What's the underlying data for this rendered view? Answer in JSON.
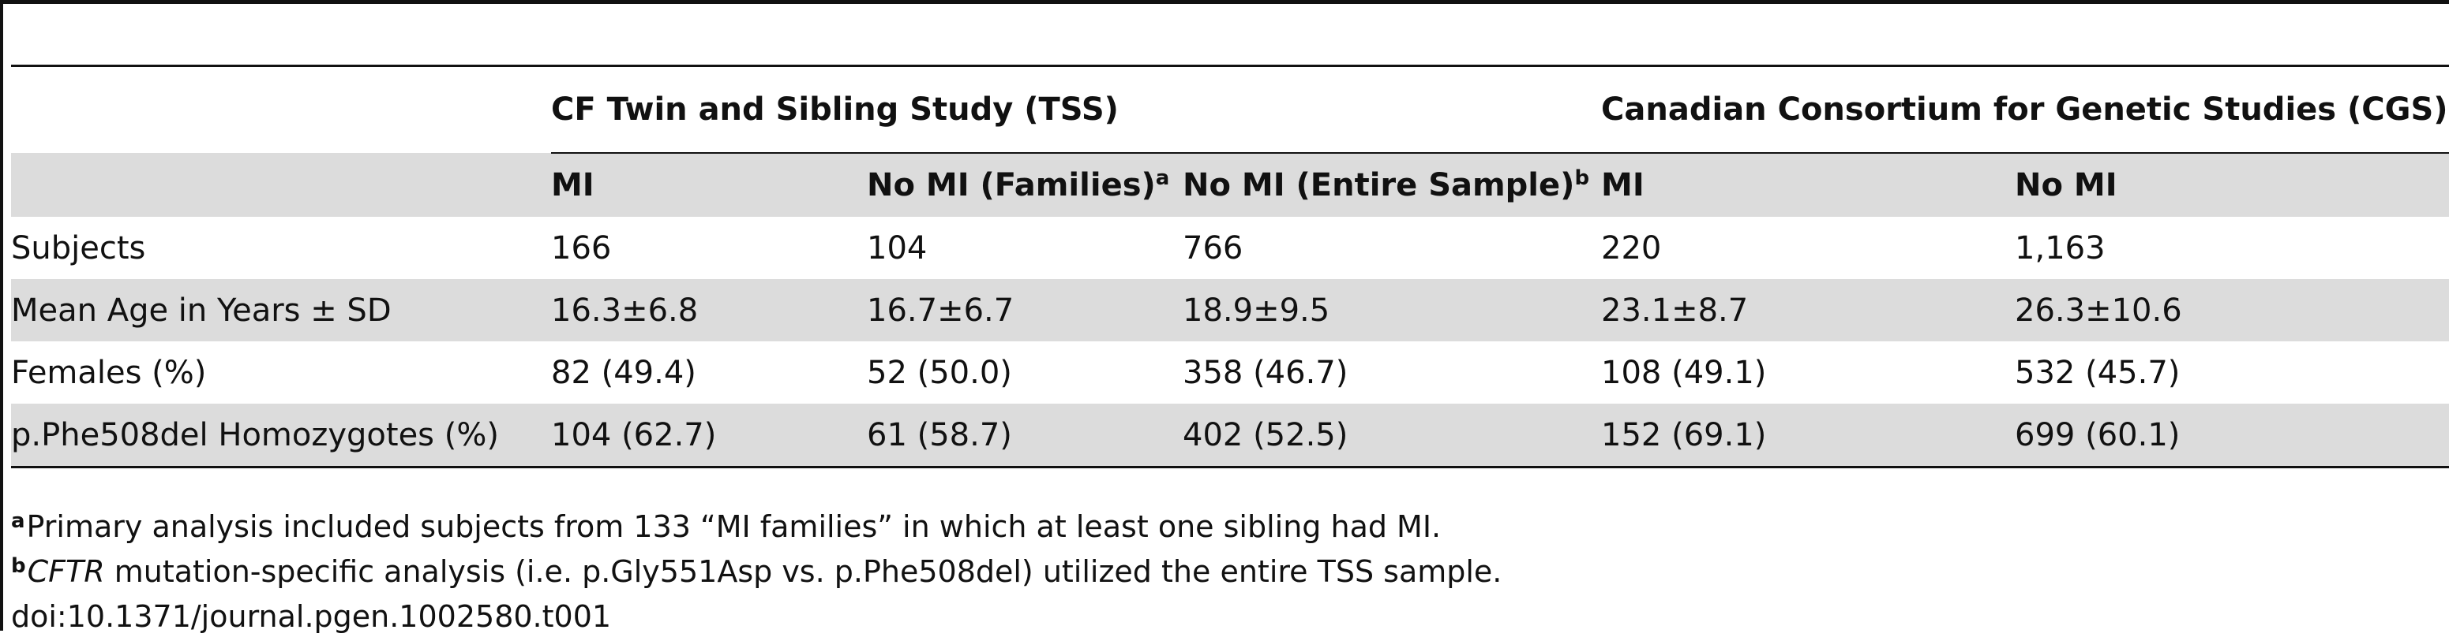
{
  "table": {
    "groups": [
      {
        "label": "",
        "span": 1
      },
      {
        "label": "CF Twin and Sibling Study (TSS)",
        "span": 3
      },
      {
        "label": "Canadian Consortium for Genetic Studies (CGS)",
        "span": 2
      }
    ],
    "columns": [
      {
        "label": "",
        "sup": ""
      },
      {
        "label": "MI",
        "sup": ""
      },
      {
        "label": "No MI (Families)",
        "sup": "a"
      },
      {
        "label": "No MI (Entire Sample)",
        "sup": "b"
      },
      {
        "label": "MI",
        "sup": ""
      },
      {
        "label": "No MI",
        "sup": ""
      }
    ],
    "rows": [
      {
        "label": "Subjects",
        "values": [
          "166",
          "104",
          "766",
          "220",
          "1,163"
        ]
      },
      {
        "label": "Mean Age in Years ± SD",
        "values": [
          "16.3±6.8",
          "16.7±6.7",
          "18.9±9.5",
          "23.1±8.7",
          "26.3±10.6"
        ]
      },
      {
        "label": "Females (%)",
        "values": [
          "82 (49.4)",
          "52 (50.0)",
          "358 (46.7)",
          "108 (49.1)",
          "532 (45.7)"
        ]
      },
      {
        "label": "p.Phe508del Homozygotes (%)",
        "values": [
          "104 (62.7)",
          "61 (58.7)",
          "402 (52.5)",
          "152 (69.1)",
          "699 (60.1)"
        ]
      }
    ]
  },
  "footnotes": [
    {
      "marker": "a",
      "gene": "",
      "text": "Primary analysis included subjects from 133 “MI families” in which at least one sibling had MI."
    },
    {
      "marker": "b",
      "gene": "CFTR",
      "text": " mutation-specific analysis (i.e. p.Gly551Asp vs. p.Phe508del) utilized the entire TSS sample."
    }
  ],
  "doi": "doi:10.1371/journal.pgen.1002580.t001"
}
